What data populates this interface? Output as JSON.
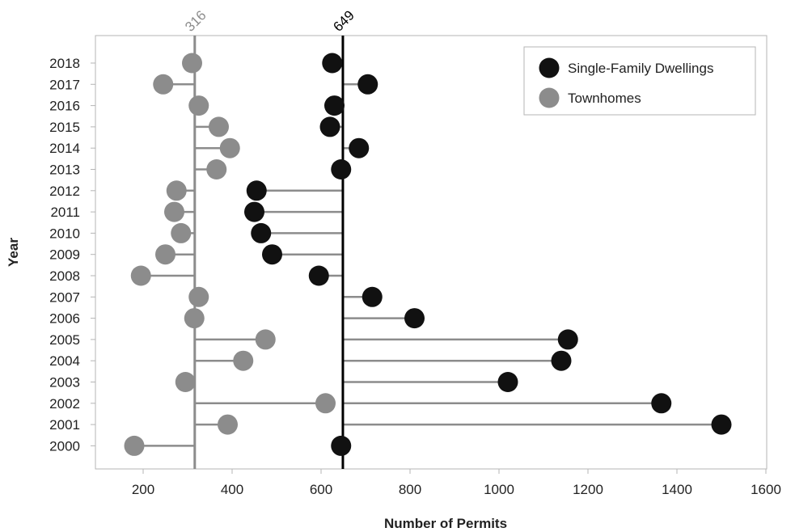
{
  "chart_data": {
    "type": "scatter",
    "subtype": "lollipop-from-reference-lines",
    "title": "",
    "xlabel": "Number of Permits",
    "ylabel": "Year",
    "xlim": [
      100,
      1600
    ],
    "x_ticks": [
      200,
      400,
      600,
      800,
      1000,
      1200,
      1400,
      1600
    ],
    "years": [
      "2000",
      "2001",
      "2002",
      "2003",
      "2004",
      "2005",
      "2006",
      "2007",
      "2008",
      "2009",
      "2010",
      "2011",
      "2012",
      "2013",
      "2014",
      "2015",
      "2016",
      "2017",
      "2018"
    ],
    "grid": false,
    "legend_position": "top-right",
    "reference_lines": [
      {
        "series": "Townhomes",
        "value": 316,
        "label": "316",
        "color": "#8c8c8c"
      },
      {
        "series": "Single-Family Dwellings",
        "value": 649,
        "label": "649",
        "color": "#000000"
      }
    ],
    "series": [
      {
        "name": "Single-Family Dwellings",
        "color": "#111111",
        "values": [
          645,
          1500,
          1365,
          1020,
          1140,
          1155,
          810,
          715,
          595,
          490,
          465,
          450,
          455,
          645,
          685,
          620,
          630,
          705,
          625
        ]
      },
      {
        "name": "Townhomes",
        "color": "#8c8c8c",
        "values": [
          180,
          390,
          610,
          295,
          425,
          475,
          315,
          325,
          195,
          250,
          285,
          270,
          275,
          365,
          395,
          370,
          325,
          245,
          310
        ]
      }
    ]
  }
}
